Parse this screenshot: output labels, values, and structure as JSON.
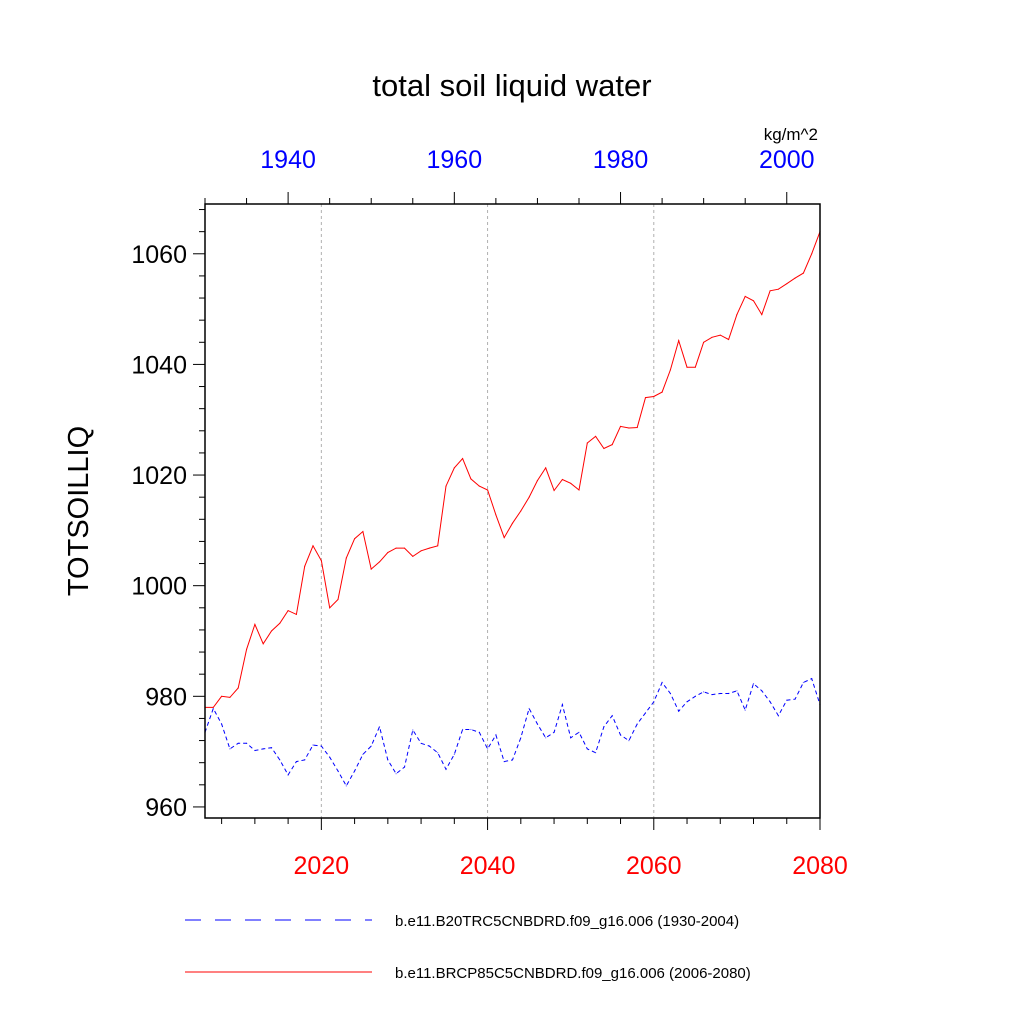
{
  "chart_data": {
    "type": "line",
    "title": "total soil liquid water",
    "units_label": "kg/m^2",
    "ylabel": "TOTSOILLIQ",
    "ylim": [
      958,
      1069
    ],
    "yticks": [
      960,
      980,
      1000,
      1020,
      1040,
      1060
    ],
    "yticks_minor_step": 4,
    "bottom_axis": {
      "color": "#ff0000",
      "xlim": [
        2006,
        2080
      ],
      "ticks": [
        2020,
        2040,
        2060,
        2080
      ],
      "minor_step": 4
    },
    "top_axis": {
      "color": "#0000ff",
      "xlim": [
        1930,
        2004
      ],
      "ticks": [
        1940,
        1960,
        1980,
        2000
      ],
      "minor_step": 5
    },
    "gridlines_x": [
      2020,
      2040,
      2060
    ],
    "series": [
      {
        "name": "b.e11.B20TRC5CNBDRD.f09_g16.006 (1930-2004)",
        "axis": "top",
        "color": "#0000ff",
        "dash": "dashed",
        "x_start": 1930,
        "values": [
          973.5,
          977.8,
          975.0,
          970.5,
          971.5,
          971.5,
          970.2,
          970.5,
          970.7,
          968.5,
          965.8,
          968.2,
          968.5,
          971.2,
          971.0,
          969.0,
          966.5,
          963.8,
          966.5,
          969.5,
          971.0,
          974.5,
          968.5,
          966.0,
          967.2,
          973.9,
          971.5,
          971.0,
          969.8,
          966.8,
          969.5,
          974.0,
          974.0,
          973.5,
          970.5,
          973.0,
          968.2,
          968.5,
          972.5,
          977.8,
          975.0,
          972.5,
          973.5,
          978.5,
          972.5,
          973.5,
          970.5,
          969.8,
          974.5,
          976.5,
          973.0,
          972.0,
          975.0,
          977.0,
          979.0,
          982.5,
          980.5,
          977.3,
          979.0,
          980.0,
          980.8,
          980.3,
          980.5,
          980.5,
          981.0,
          977.5,
          982.3,
          981.0,
          979.0,
          976.5,
          979.3,
          979.5,
          982.5,
          983.2,
          978.5
        ]
      },
      {
        "name": "b.e11.BRCP85C5CNBDRD.f09_g16.006 (2006-2080)",
        "axis": "bottom",
        "color": "#ff0000",
        "dash": "solid",
        "x_start": 2006,
        "values": [
          978.0,
          978.0,
          980.0,
          979.8,
          981.5,
          988.5,
          993.0,
          989.5,
          991.8,
          993.2,
          995.5,
          994.8,
          1003.5,
          1007.2,
          1004.5,
          996.0,
          997.5,
          1005.0,
          1008.5,
          1009.8,
          1003.0,
          1004.3,
          1006.0,
          1006.8,
          1006.8,
          1005.3,
          1006.3,
          1006.8,
          1007.2,
          1018.0,
          1021.3,
          1023.0,
          1019.3,
          1018.0,
          1017.3,
          1012.8,
          1008.7,
          1011.3,
          1013.5,
          1016.0,
          1019.0,
          1021.3,
          1017.2,
          1019.2,
          1018.5,
          1017.3,
          1025.8,
          1027.0,
          1024.8,
          1025.5,
          1028.8,
          1028.5,
          1028.6,
          1034.0,
          1034.2,
          1035.0,
          1039.0,
          1044.3,
          1039.5,
          1039.5,
          1044.0,
          1044.9,
          1045.3,
          1044.5,
          1049.0,
          1052.3,
          1051.5,
          1049.0,
          1053.3,
          1053.6,
          1054.6,
          1055.6,
          1056.5,
          1060.0,
          1064.0
        ]
      }
    ]
  }
}
